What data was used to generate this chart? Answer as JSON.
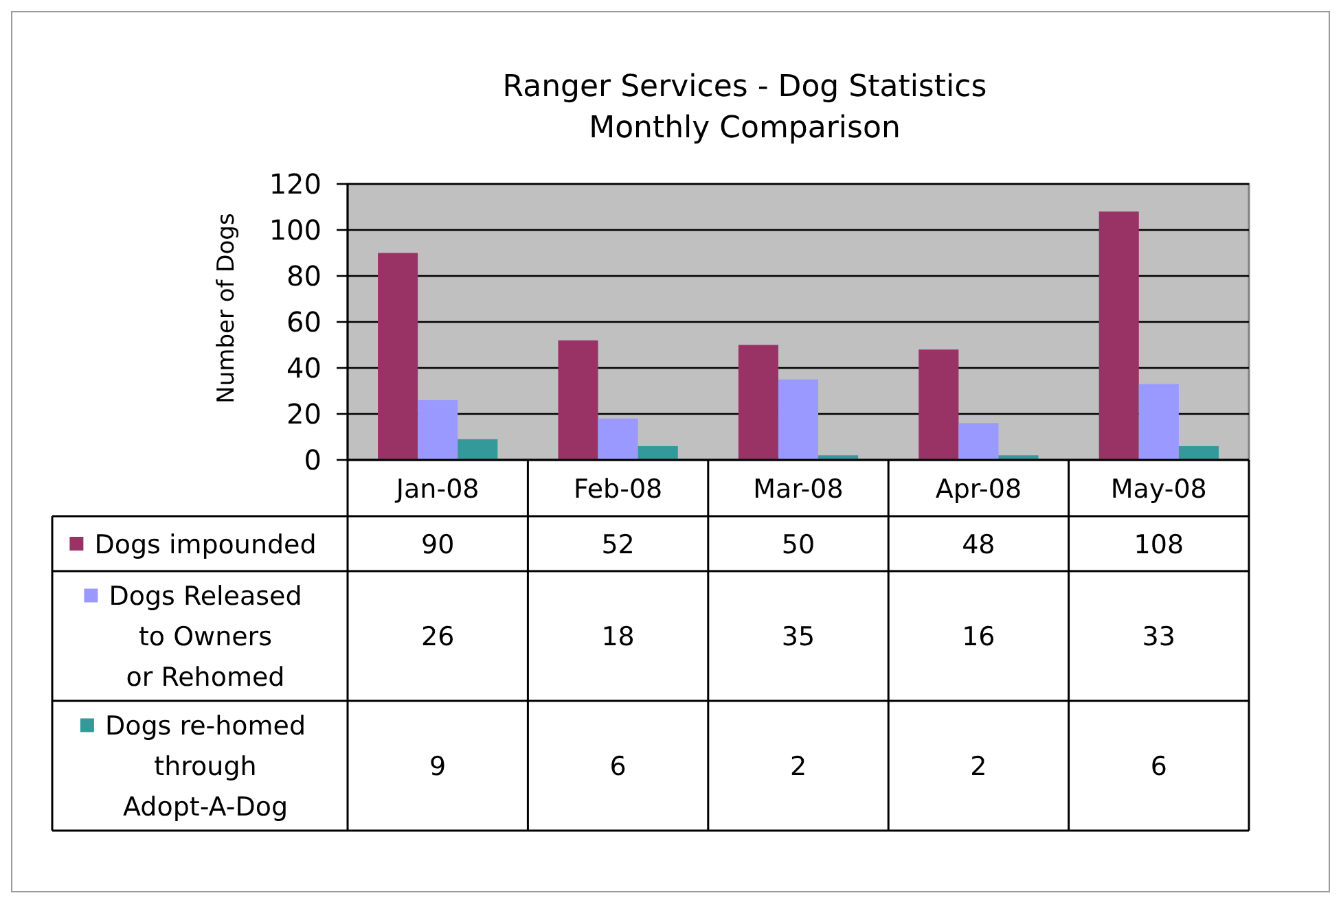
{
  "chart_data": {
    "type": "bar",
    "title": "Ranger Services - Dog Statistics",
    "subtitle": "Monthly Comparison",
    "ylabel": "Number of Dogs",
    "categories": [
      "Jan-08",
      "Feb-08",
      "Mar-08",
      "Apr-08",
      "May-08"
    ],
    "series": [
      {
        "name": "Dogs impounded",
        "color": "#993366",
        "values": [
          90,
          52,
          50,
          48,
          108
        ]
      },
      {
        "name": "Dogs Released to Owners or Rehomed",
        "color": "#9999ff",
        "values": [
          26,
          18,
          35,
          16,
          33
        ]
      },
      {
        "name": "Dogs re-homed through Adopt-A-Dog",
        "color": "#339999",
        "values": [
          9,
          6,
          2,
          2,
          6
        ]
      }
    ],
    "ylim": [
      0,
      120
    ],
    "yticks": [
      0,
      20,
      40,
      60,
      80,
      100,
      120
    ],
    "grid": "y",
    "legend": "bottom",
    "data_labels": true
  }
}
